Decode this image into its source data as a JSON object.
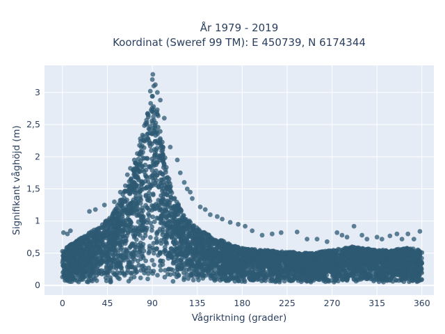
{
  "chart_data": {
    "type": "scatter",
    "title_line1": "År 1979 - 2019",
    "title_line2": "Koordinat (Sweref 99 TM): E 450739, N 6174344",
    "xlabel": "Vågriktning (grader)",
    "ylabel": "Signifikant våghöjd (m)",
    "xlim": [
      -18,
      372
    ],
    "ylim": [
      -0.15,
      3.42
    ],
    "xticks": [
      0,
      45,
      90,
      135,
      180,
      225,
      270,
      315,
      360
    ],
    "xtick_labels": [
      "0",
      "45",
      "90",
      "135",
      "180",
      "225",
      "270",
      "315",
      "360"
    ],
    "yticks": [
      0,
      0.5,
      1,
      1.5,
      2,
      2.5,
      3
    ],
    "ytick_labels": [
      "0",
      "0,5",
      "1",
      "1,5",
      "2",
      "2,5",
      "3"
    ],
    "grid": true,
    "legend": "none",
    "marker_color": "#2e5a73",
    "plot_bg": "#e5ecf6",
    "envelope": {
      "x": [
        0,
        10,
        20,
        30,
        40,
        50,
        60,
        70,
        80,
        85,
        90,
        95,
        100,
        105,
        110,
        120,
        130,
        140,
        150,
        160,
        170,
        180,
        200,
        225,
        250,
        270,
        290,
        300,
        315,
        330,
        345,
        360
      ],
      "upper": [
        0.55,
        0.65,
        0.75,
        0.85,
        0.95,
        1.1,
        1.4,
        1.75,
        2.35,
        2.75,
        2.95,
        2.8,
        2.25,
        1.8,
        1.45,
        1.15,
        0.95,
        0.85,
        0.75,
        0.7,
        0.62,
        0.58,
        0.55,
        0.52,
        0.5,
        0.55,
        0.6,
        0.58,
        0.55,
        0.55,
        0.58,
        0.55
      ]
    },
    "outliers": [
      {
        "x": 1,
        "y": 0.82
      },
      {
        "x": 5,
        "y": 0.8
      },
      {
        "x": 8,
        "y": 0.85
      },
      {
        "x": 27,
        "y": 1.15
      },
      {
        "x": 33,
        "y": 1.18
      },
      {
        "x": 42,
        "y": 1.25
      },
      {
        "x": 52,
        "y": 1.3
      },
      {
        "x": 58,
        "y": 1.45
      },
      {
        "x": 63,
        "y": 1.55
      },
      {
        "x": 65,
        "y": 1.72
      },
      {
        "x": 68,
        "y": 1.82
      },
      {
        "x": 72,
        "y": 1.95
      },
      {
        "x": 75,
        "y": 2.05
      },
      {
        "x": 78,
        "y": 2.28
      },
      {
        "x": 84,
        "y": 2.5
      },
      {
        "x": 86,
        "y": 2.65
      },
      {
        "x": 88,
        "y": 3.02
      },
      {
        "x": 90,
        "y": 3.2
      },
      {
        "x": 90.5,
        "y": 3.28
      },
      {
        "x": 91.5,
        "y": 3.1
      },
      {
        "x": 93,
        "y": 3.12
      },
      {
        "x": 95,
        "y": 3.0
      },
      {
        "x": 98,
        "y": 2.88
      },
      {
        "x": 102,
        "y": 2.6
      },
      {
        "x": 108,
        "y": 2.15
      },
      {
        "x": 115,
        "y": 1.95
      },
      {
        "x": 118,
        "y": 1.75
      },
      {
        "x": 122,
        "y": 1.6
      },
      {
        "x": 125,
        "y": 1.5
      },
      {
        "x": 128,
        "y": 1.45
      },
      {
        "x": 130,
        "y": 1.35
      },
      {
        "x": 138,
        "y": 1.22
      },
      {
        "x": 143,
        "y": 1.18
      },
      {
        "x": 148,
        "y": 1.1
      },
      {
        "x": 155,
        "y": 1.07
      },
      {
        "x": 160,
        "y": 1.03
      },
      {
        "x": 168,
        "y": 0.98
      },
      {
        "x": 176,
        "y": 0.95
      },
      {
        "x": 183,
        "y": 0.92
      },
      {
        "x": 190,
        "y": 0.85
      },
      {
        "x": 200,
        "y": 0.78
      },
      {
        "x": 210,
        "y": 0.8
      },
      {
        "x": 219,
        "y": 0.82
      },
      {
        "x": 235,
        "y": 0.83
      },
      {
        "x": 245,
        "y": 0.72
      },
      {
        "x": 255,
        "y": 0.72
      },
      {
        "x": 265,
        "y": 0.68
      },
      {
        "x": 275,
        "y": 0.82
      },
      {
        "x": 280,
        "y": 0.78
      },
      {
        "x": 285,
        "y": 0.75
      },
      {
        "x": 292,
        "y": 0.92
      },
      {
        "x": 300,
        "y": 0.78
      },
      {
        "x": 305,
        "y": 0.72
      },
      {
        "x": 315,
        "y": 0.75
      },
      {
        "x": 320,
        "y": 0.72
      },
      {
        "x": 328,
        "y": 0.77
      },
      {
        "x": 335,
        "y": 0.8
      },
      {
        "x": 340,
        "y": 0.72
      },
      {
        "x": 346,
        "y": 0.8
      },
      {
        "x": 352,
        "y": 0.72
      },
      {
        "x": 358,
        "y": 0.84
      }
    ]
  }
}
